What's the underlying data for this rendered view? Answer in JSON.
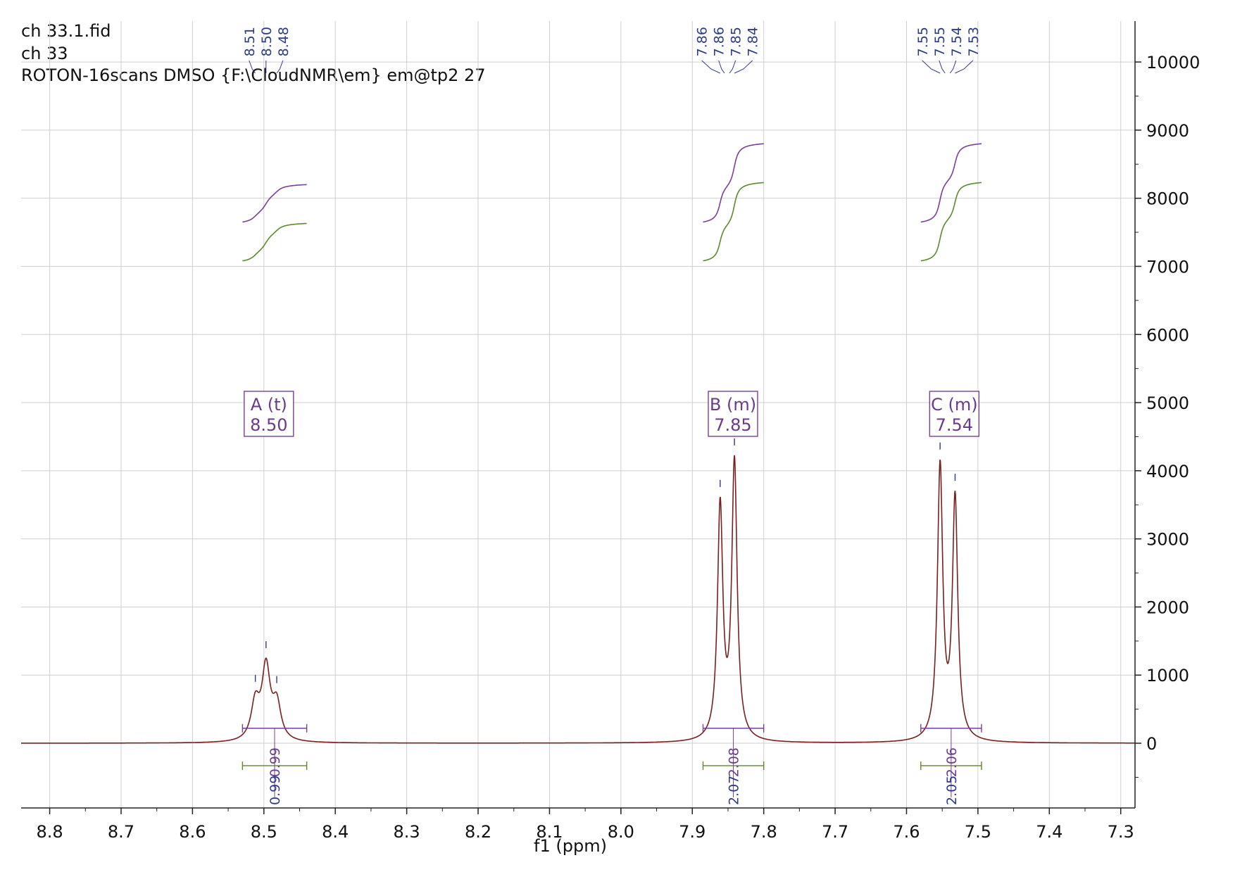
{
  "header": {
    "line1": "ch 33.1.fid",
    "line2": "ch 33",
    "line3": "ROTON-16scans DMSO {F:\\CloudNMR\\em} em@tp2 27"
  },
  "colors": {
    "spectrum": "#7a1f1f",
    "integral_purple": "#7b3f98",
    "integral_green": "#5a8a2a",
    "peak_label": "#2c3a8c",
    "grid": "#cfcfcf"
  },
  "chart_data": {
    "type": "line",
    "title": "",
    "xlabel": "f1 (ppm)",
    "ylabel": "",
    "xlim": [
      8.84,
      7.28
    ],
    "ylim": [
      -950,
      10600
    ],
    "x_reversed": true,
    "x_ticks": [
      "8.8",
      "8.7",
      "8.6",
      "8.5",
      "8.4",
      "8.3",
      "8.2",
      "8.1",
      "8.0",
      "7.9",
      "7.8",
      "7.7",
      "7.6",
      "7.5",
      "7.4",
      "7.3"
    ],
    "y_ticks": [
      "10000",
      "9000",
      "8000",
      "7000",
      "6000",
      "5000",
      "4000",
      "3000",
      "2000",
      "1000",
      "0"
    ],
    "grid": true,
    "peaks": [
      {
        "center": 8.512,
        "height": 540,
        "width": 0.007
      },
      {
        "center": 8.497,
        "height": 1060,
        "width": 0.007
      },
      {
        "center": 8.482,
        "height": 520,
        "width": 0.007
      },
      {
        "center": 7.861,
        "height": 3420,
        "width": 0.0045
      },
      {
        "center": 7.841,
        "height": 4060,
        "width": 0.0045
      },
      {
        "center": 7.553,
        "height": 4010,
        "width": 0.0045
      },
      {
        "center": 7.532,
        "height": 3530,
        "width": 0.0045
      }
    ],
    "peak_labels": [
      {
        "group": "A",
        "labels": [
          "8.51",
          "8.50",
          "8.48"
        ]
      },
      {
        "group": "B",
        "labels": [
          "7.86",
          "7.86",
          "7.85",
          "7.84"
        ]
      },
      {
        "group": "C",
        "labels": [
          "7.55",
          "7.55",
          "7.54",
          "7.53"
        ]
      }
    ],
    "multiplets": [
      {
        "label": "A (t)",
        "shift": "8.50",
        "range": [
          8.53,
          8.44
        ]
      },
      {
        "label": "B (m)",
        "shift": "7.85",
        "range": [
          7.885,
          7.8
        ]
      },
      {
        "label": "C (m)",
        "shift": "7.54",
        "range": [
          7.58,
          7.495
        ]
      }
    ],
    "integrals": [
      {
        "range": [
          8.53,
          8.44
        ],
        "value_purple": "0.99",
        "value_blue": "0.99",
        "curve_purple": [
          7650,
          8200
        ],
        "curve_green": [
          7080,
          7630
        ]
      },
      {
        "range": [
          7.885,
          7.8
        ],
        "value_purple": "2.08",
        "value_blue": "2.07",
        "curve_purple": [
          7650,
          8800
        ],
        "curve_green": [
          7080,
          8230
        ]
      },
      {
        "range": [
          7.58,
          7.495
        ],
        "value_purple": "2.06",
        "value_blue": "2.05",
        "curve_purple": [
          7650,
          8800
        ],
        "curve_green": [
          7080,
          8230
        ]
      }
    ]
  }
}
